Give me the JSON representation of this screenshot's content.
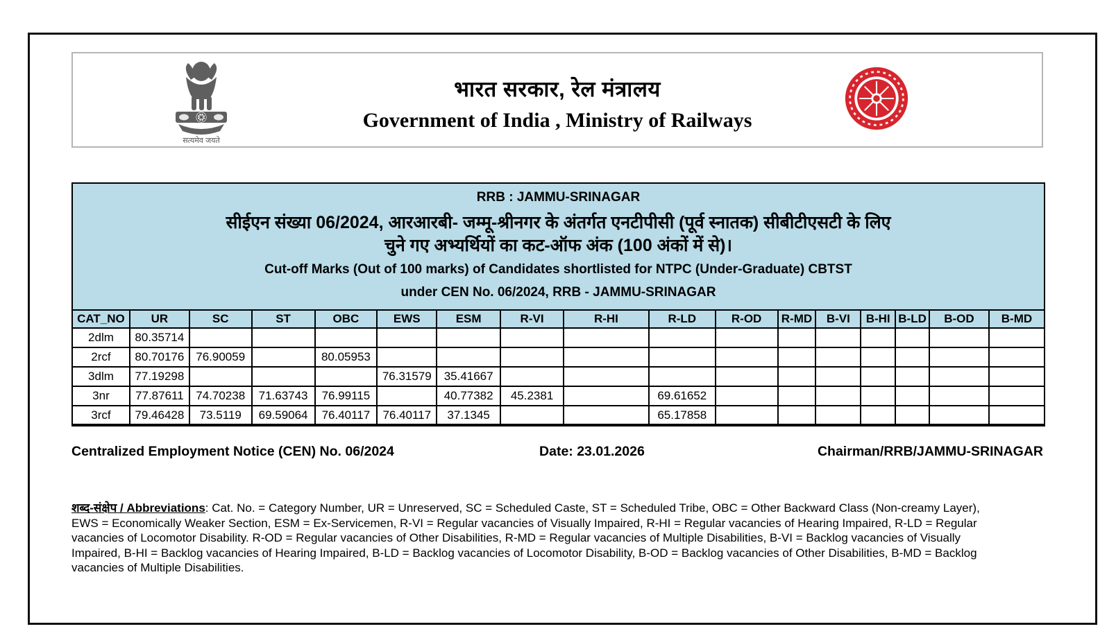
{
  "letterhead": {
    "title_hindi": "भारत सरकार, रेल मंत्रालय",
    "title_english": "Government of India , Ministry of Railways",
    "emblem_motto": "सत्यमेव जयते"
  },
  "notice": {
    "board_line": "RRB : JAMMU-SRINAGAR",
    "title_hindi_line1": "सीईएन संख्या 06/2024, आरआरबी- जम्मू-श्रीनगर के अंतर्गत एनटीपीसी (पूर्व स्नातक) सीबीटीएसटी के लिए",
    "title_hindi_line2": "चुने गए अभ्यर्थियों का कट-ऑफ अंक (100 अंकों में से)।",
    "title_english_line1": "Cut-off Marks (Out of 100 marks) of Candidates shortlisted for NTPC (Under-Graduate) CBTST",
    "title_english_line2": "under CEN No. 06/2024, RRB - JAMMU-SRINAGAR"
  },
  "table": {
    "columns": [
      "CAT_NO",
      "UR",
      "SC",
      "ST",
      "OBC",
      "EWS",
      "ESM",
      "R-VI",
      "R-HI",
      "R-LD",
      "R-OD",
      "R-MD",
      "B-VI",
      "B-HI",
      "B-LD",
      "B-OD",
      "B-MD"
    ],
    "rows": [
      {
        "cells": [
          "2dlm",
          "80.35714",
          "",
          "",
          "",
          "",
          "",
          "",
          "",
          "",
          "",
          "",
          "",
          "",
          "",
          "",
          ""
        ]
      },
      {
        "cells": [
          "2rcf",
          "80.70176",
          "76.90059",
          "",
          "80.05953",
          "",
          "",
          "",
          "",
          "",
          "",
          "",
          "",
          "",
          "",
          "",
          ""
        ]
      },
      {
        "cells": [
          "3dlm",
          "77.19298",
          "",
          "",
          "",
          "76.31579",
          "35.41667",
          "",
          "",
          "",
          "",
          "",
          "",
          "",
          "",
          "",
          ""
        ]
      },
      {
        "cells": [
          "3nr",
          "77.87611",
          "74.70238",
          "71.63743",
          "76.99115",
          "",
          "40.77382",
          "45.2381",
          "",
          "69.61652",
          "",
          "",
          "",
          "",
          "",
          "",
          ""
        ]
      },
      {
        "cells": [
          "3rcf",
          "79.46428",
          "73.5119",
          "69.59064",
          "76.40117",
          "76.40117",
          "37.1345",
          "",
          "",
          "65.17858",
          "",
          "",
          "",
          "",
          "",
          "",
          ""
        ]
      }
    ]
  },
  "footer": {
    "cen_notice": "Centralized Employment Notice (CEN) No. 06/2024",
    "date": "Date: 23.01.2026",
    "signatory": "Chairman/RRB/JAMMU-SRINAGAR"
  },
  "abbreviations": {
    "heading": "शब्द-संक्षेप / Abbreviations",
    "body": ": Cat. No. = Category Number, UR = Unreserved, SC = Scheduled Caste, ST = Scheduled Tribe, OBC = Other Backward Class (Non-creamy Layer), EWS = Economically Weaker Section, ESM = Ex-Servicemen, R-VI = Regular vacancies of Visually Impaired, R-HI = Regular vacancies of Hearing Impaired, R-LD = Regular vacancies of Locomotor Disability. R-OD = Regular vacancies of Other Disabilities, R-MD = Regular vacancies of Multiple Disabilities, B-VI = Backlog vacancies of Visually Impaired, B-HI = Backlog vacancies of Hearing Impaired, B-LD = Backlog vacancies of Locomotor Disability, B-OD = Backlog vacancies of Other Disabilities, B-MD = Backlog vacancies of Multiple Disabilities."
  },
  "colors": {
    "table_header_bg": "#b9dce8",
    "railways_logo_red": "#d6252e",
    "border_black": "#111111"
  }
}
